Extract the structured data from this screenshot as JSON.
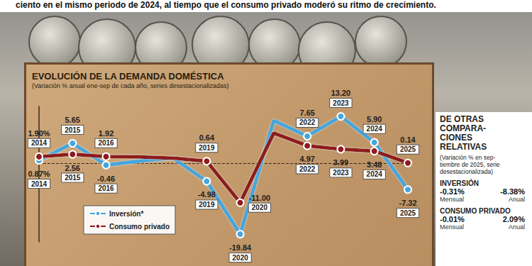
{
  "header": "ciento en el mismo periodo de 2024, al tiempo que el consumo privado moderó su ritmo de crecimiento.",
  "chart_data": {
    "type": "line",
    "title": "EVOLUCIÓN DE LA DEMANDA DOMÉSTICA",
    "subtitle": "(Variación % anual ene-sep de cada año, series desestacionalizadas)",
    "categories": [
      "2014",
      "2015",
      "2016",
      null,
      null,
      "2019",
      "2020",
      null,
      "2022",
      "2023",
      "2024",
      "2025"
    ],
    "series": [
      {
        "name": "Inversión*",
        "color": "#45a6dc",
        "marker": "circle",
        "line_style": "solid",
        "values": [
          0.87,
          5.65,
          -0.46,
          0.7,
          1.5,
          -4.98,
          -19.84,
          12,
          7.65,
          13.2,
          5.9,
          -7.32
        ],
        "value_labels": [
          "0.87%",
          "5.65",
          "-0.46",
          null,
          null,
          "-4.98",
          "-19.84",
          null,
          "7.65",
          "13.20",
          "5.90",
          "-7.32"
        ]
      },
      {
        "name": "Consumo privado",
        "color": "#8e1b1e",
        "marker": "circle",
        "line_style": "solid",
        "values": [
          1.9,
          2.56,
          1.92,
          1.8,
          1.5,
          0.64,
          -11.0,
          8.5,
          4.97,
          3.99,
          3.48,
          0.14
        ],
        "value_labels": [
          "1.90%",
          "2.56",
          "1.92",
          null,
          null,
          "0.64",
          "-11.00",
          null,
          "4.97",
          "3.99",
          "3.48",
          "0.14"
        ]
      }
    ],
    "ylim": [
      -22,
      16
    ],
    "yticks": [
      0
    ],
    "grid": true,
    "tick_labels": false,
    "data_labels": true,
    "legend": "lower left"
  },
  "side_panel": {
    "title_lines": [
      "DE OTRAS",
      "COMPARA-",
      "CIONES",
      "RELATIVAS"
    ],
    "subtitle_lines": [
      "(Variación % en sep-",
      "tiembre de 2025, serie",
      "desestacionalizada)"
    ],
    "sections": [
      {
        "name": "INVERSIÓN",
        "items": [
          {
            "value": "-0.31%",
            "label": "Mensual"
          },
          {
            "value": "-8.38%",
            "label": "Anual"
          }
        ]
      },
      {
        "name": "CONSUMO PRIVADO",
        "items": [
          {
            "value": "-0.01%",
            "label": "Mensual"
          },
          {
            "value": "2.09%",
            "label": "Anual"
          }
        ]
      }
    ]
  }
}
